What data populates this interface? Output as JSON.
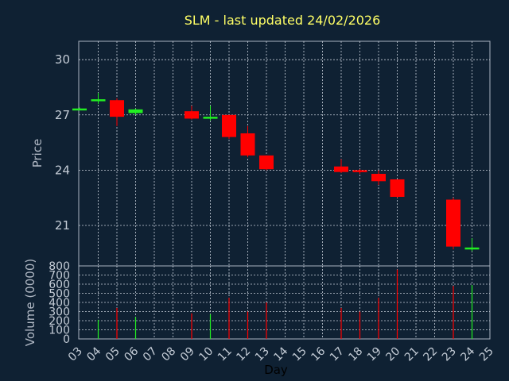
{
  "chart_data": {
    "type": "candlestick",
    "title": "SLM - last updated 24/02/2026",
    "ylabel": "Price",
    "volume_label": "Volume (0000)",
    "xlabel": "Day",
    "price_ylim": [
      18.8,
      31
    ],
    "price_ticks": [
      21,
      24,
      27,
      30
    ],
    "volume_ylim": [
      0,
      800
    ],
    "volume_ticks": [
      0,
      100,
      200,
      300,
      400,
      500,
      600,
      700,
      800
    ],
    "x_tick_labels": [
      "03",
      "04",
      "05",
      "06",
      "07",
      "08",
      "09",
      "10",
      "11",
      "12",
      "13",
      "14",
      "15",
      "16",
      "17",
      "18",
      "19",
      "20",
      "21",
      "22",
      "23",
      "24",
      "25"
    ],
    "grid": true,
    "colors": {
      "up": "#22ee22",
      "down": "#ff0000",
      "background": "#0f2133",
      "title": "#ffff66"
    },
    "candles": [
      {
        "day": "03",
        "open": 27.3,
        "high": 27.4,
        "low": 27.25,
        "close": 27.35,
        "volume": 0
      },
      {
        "day": "04",
        "open": 27.8,
        "high": 28.2,
        "low": 27.6,
        "close": 27.85,
        "volume": 210
      },
      {
        "day": "05",
        "open": 27.8,
        "high": 27.9,
        "low": 26.4,
        "close": 26.9,
        "volume": 340
      },
      {
        "day": "06",
        "open": 27.1,
        "high": 27.35,
        "low": 27.0,
        "close": 27.3,
        "volume": 240
      },
      {
        "day": "09",
        "open": 27.2,
        "high": 27.5,
        "low": 26.75,
        "close": 26.8,
        "volume": 280
      },
      {
        "day": "10",
        "open": 26.8,
        "high": 27.5,
        "low": 26.7,
        "close": 26.9,
        "volume": 270
      },
      {
        "day": "11",
        "open": 27.0,
        "high": 27.0,
        "low": 25.7,
        "close": 25.8,
        "volume": 450
      },
      {
        "day": "12",
        "open": 26.0,
        "high": 26.4,
        "low": 24.7,
        "close": 24.8,
        "volume": 300
      },
      {
        "day": "13",
        "open": 24.8,
        "high": 24.8,
        "low": 24.0,
        "close": 24.05,
        "volume": 400
      },
      {
        "day": "17",
        "open": 24.2,
        "high": 24.6,
        "low": 23.85,
        "close": 23.9,
        "volume": 340
      },
      {
        "day": "18",
        "open": 24.0,
        "high": 24.05,
        "low": 23.8,
        "close": 23.9,
        "volume": 300
      },
      {
        "day": "19",
        "open": 23.8,
        "high": 24.0,
        "low": 23.2,
        "close": 23.4,
        "volume": 450
      },
      {
        "day": "20",
        "open": 23.5,
        "high": 23.5,
        "low": 22.5,
        "close": 22.55,
        "volume": 760
      },
      {
        "day": "23",
        "open": 22.4,
        "high": 22.5,
        "low": 19.7,
        "close": 19.85,
        "volume": 580
      },
      {
        "day": "24",
        "open": 19.75,
        "high": 20.3,
        "low": 19.6,
        "close": 19.8,
        "volume": 590
      }
    ]
  }
}
